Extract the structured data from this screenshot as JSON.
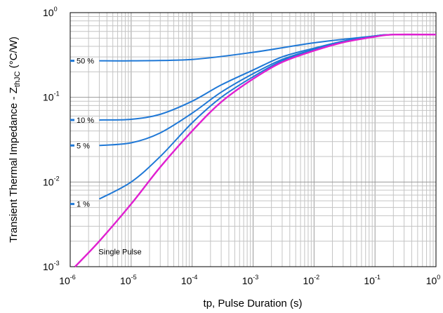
{
  "chart_data": {
    "type": "line",
    "xlabel": "tp, Pulse Duration (s)",
    "ylabel_main": "Transient Thermal Impedance - Z",
    "ylabel_sub": "thJC",
    "ylabel_unit": " (°C/W)",
    "x_scale": "log",
    "y_scale": "log",
    "xlim": [
      1e-06,
      1
    ],
    "ylim": [
      0.001,
      1
    ],
    "grid": true,
    "x_ticks": [
      {
        "base": "10",
        "exp": "-6",
        "value": 1e-06
      },
      {
        "base": "10",
        "exp": "-5",
        "value": 1e-05
      },
      {
        "base": "10",
        "exp": "-4",
        "value": 0.0001
      },
      {
        "base": "10",
        "exp": "-3",
        "value": 0.001
      },
      {
        "base": "10",
        "exp": "-2",
        "value": 0.01
      },
      {
        "base": "10",
        "exp": "-1",
        "value": 0.1
      },
      {
        "base": "10",
        "exp": "0",
        "value": 1
      }
    ],
    "y_ticks": [
      {
        "base": "10",
        "exp": "0",
        "value": 1
      },
      {
        "base": "10",
        "exp": "-1",
        "value": 0.1
      },
      {
        "base": "10",
        "exp": "-2",
        "value": 0.01
      },
      {
        "base": "10",
        "exp": "-3",
        "value": 0.001
      }
    ],
    "series": [
      {
        "name": "50 %",
        "color": "#1f78d6",
        "label_y": 0.27,
        "x": [
          3e-06,
          1e-05,
          0.0001,
          0.001,
          0.01,
          0.1,
          0.2,
          1
        ],
        "y": [
          0.27,
          0.27,
          0.28,
          0.34,
          0.44,
          0.53,
          0.55,
          0.55
        ]
      },
      {
        "name": "10 %",
        "color": "#1f78d6",
        "label_y": 0.054,
        "x": [
          3e-06,
          1e-05,
          3e-05,
          0.0001,
          0.0003,
          0.001,
          0.003,
          0.01,
          0.03,
          0.1,
          0.2,
          1
        ],
        "y": [
          0.054,
          0.055,
          0.063,
          0.09,
          0.14,
          0.21,
          0.3,
          0.38,
          0.46,
          0.53,
          0.55,
          0.55
        ]
      },
      {
        "name": "5 %",
        "color": "#1f78d6",
        "label_y": 0.027,
        "x": [
          3e-06,
          1e-05,
          3e-05,
          0.0001,
          0.0003,
          0.001,
          0.003,
          0.01,
          0.03,
          0.1,
          0.2,
          1
        ],
        "y": [
          0.027,
          0.029,
          0.038,
          0.065,
          0.115,
          0.19,
          0.28,
          0.37,
          0.46,
          0.53,
          0.55,
          0.55
        ]
      },
      {
        "name": "1 %",
        "color": "#1f78d6",
        "label_y": 0.0055,
        "x": [
          3e-06,
          1e-05,
          3e-05,
          0.0001,
          0.0003,
          0.001,
          0.003,
          0.01,
          0.03,
          0.1,
          0.2,
          1
        ],
        "y": [
          0.0063,
          0.01,
          0.02,
          0.05,
          0.1,
          0.175,
          0.27,
          0.36,
          0.45,
          0.53,
          0.55,
          0.55
        ]
      },
      {
        "name": "Single Pulse",
        "color": "#e020d0",
        "x": [
          1.2e-06,
          3e-06,
          1e-05,
          3e-05,
          0.0001,
          0.0003,
          0.001,
          0.003,
          0.01,
          0.03,
          0.1,
          0.2,
          1
        ],
        "y": [
          0.001,
          0.002,
          0.0055,
          0.015,
          0.04,
          0.088,
          0.165,
          0.26,
          0.355,
          0.445,
          0.52,
          0.55,
          0.55
        ]
      }
    ]
  }
}
